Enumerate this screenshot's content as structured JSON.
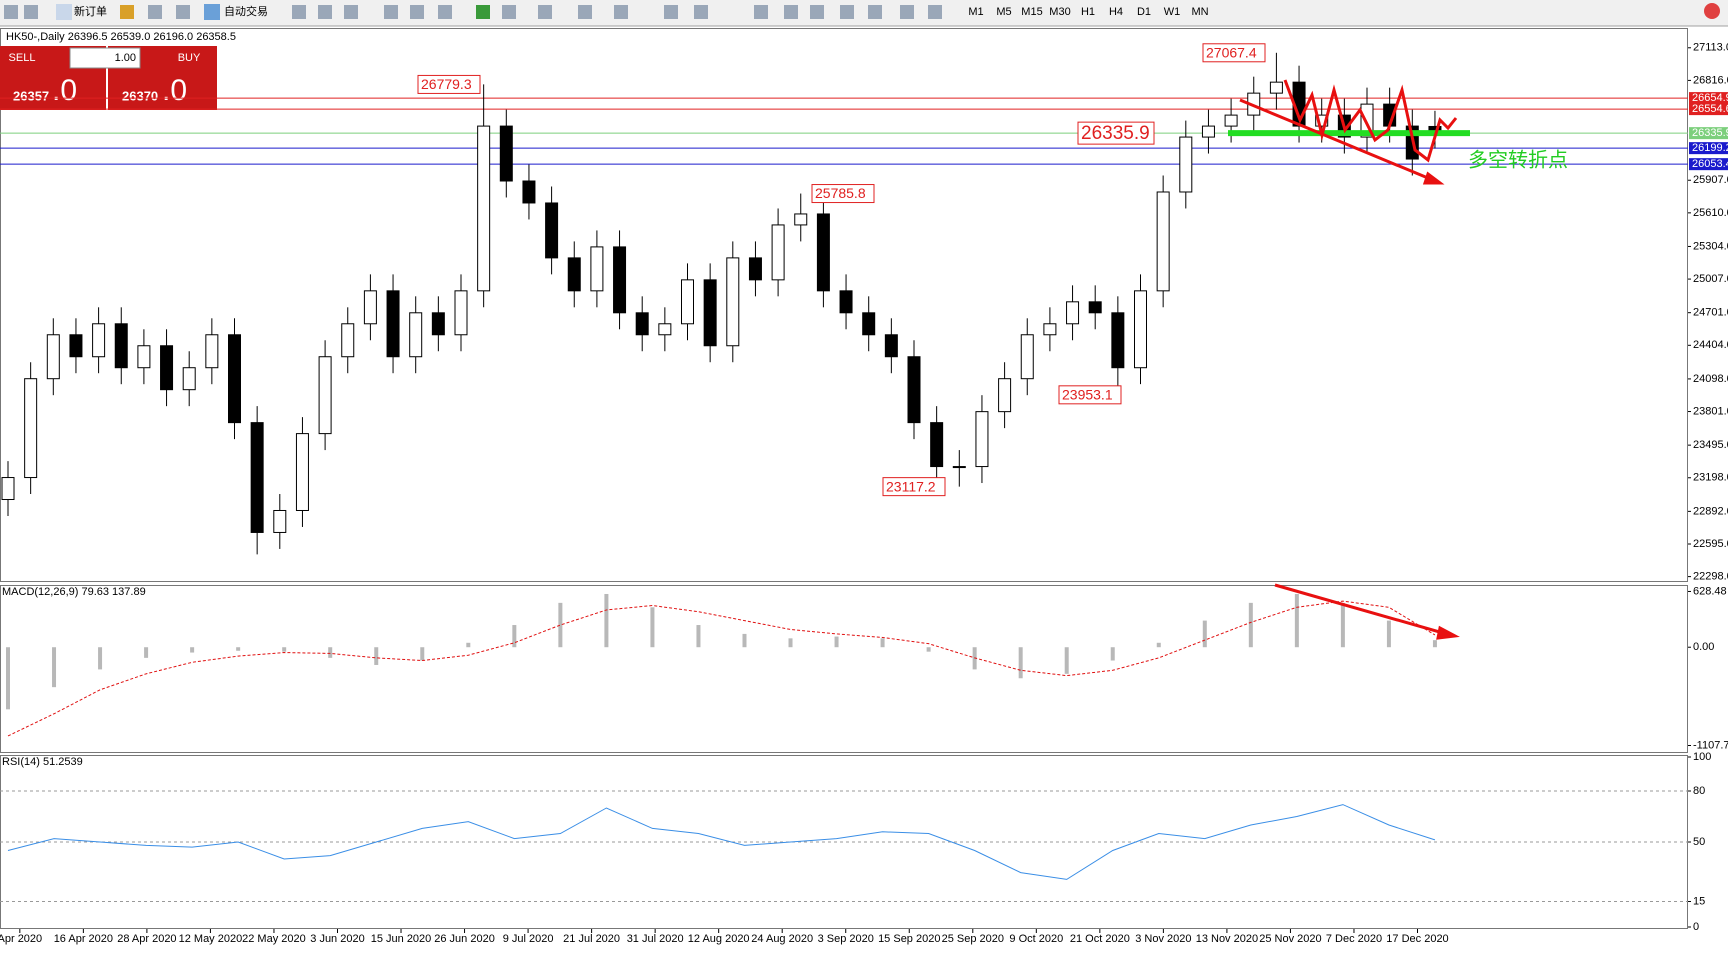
{
  "toolbar": {
    "new_order": "新订单",
    "auto_trading": "自动交易",
    "timeframes": [
      "M1",
      "M5",
      "M15",
      "M30",
      "H1",
      "H4",
      "D1",
      "W1",
      "MN"
    ]
  },
  "trade_panel": {
    "sell": "SELL",
    "buy": "BUY",
    "lot": "1.00",
    "sell_price": "26357",
    "sell_price_tail": ".0",
    "buy_price": "26370",
    "buy_price_tail": ".0"
  },
  "chart_data": [
    {
      "type": "candlestick",
      "title": "HK50-,Daily  26396.5 26539.0 26196.0 26358.5",
      "up_color": "#ffffff",
      "down_color": "#000000",
      "open": [
        23000,
        23200,
        24100,
        24500,
        24300,
        24600,
        24200,
        24400,
        24000,
        24200,
        24500,
        23700,
        22700,
        22900,
        23600,
        24300,
        24600,
        24900,
        24300,
        24700,
        24500,
        24900,
        26400,
        25900,
        25700,
        25200,
        24900,
        25300,
        24700,
        24500,
        24600,
        25000,
        24400,
        25200,
        25000,
        25500,
        25600,
        24900,
        24700,
        24500,
        24300,
        23700,
        23300,
        23300,
        23800,
        24100,
        24500,
        24600,
        24800,
        24700,
        24200,
        24900,
        25800,
        26300,
        26400,
        26500,
        26700,
        26800,
        26400,
        26500,
        26300,
        26600,
        26400,
        26396.5
      ],
      "high": [
        23350,
        24250,
        24650,
        24650,
        24750,
        24750,
        24550,
        24550,
        24350,
        24650,
        24650,
        23850,
        23050,
        23750,
        24450,
        24750,
        25050,
        25050,
        24850,
        24850,
        25050,
        26779.3,
        26550,
        26050,
        25850,
        25350,
        25450,
        25450,
        24850,
        24750,
        25150,
        25150,
        25350,
        25350,
        25650,
        25785.8,
        25750,
        25050,
        24850,
        24650,
        24450,
        23850,
        23450,
        23950,
        24250,
        24650,
        24750,
        24950,
        24950,
        24850,
        25050,
        25950,
        26450,
        26550,
        26650,
        26850,
        27067.4,
        26950,
        26650,
        26650,
        26750,
        26750,
        26550,
        26539
      ],
      "low": [
        22850,
        23050,
        23950,
        24150,
        24150,
        24050,
        24050,
        23850,
        23850,
        24050,
        23550,
        22500,
        22550,
        22750,
        23450,
        24150,
        24450,
        24150,
        24150,
        24350,
        24350,
        24750,
        25750,
        25550,
        25050,
        24750,
        24750,
        24550,
        24350,
        24350,
        24450,
        24250,
        24250,
        24850,
        24850,
        25350,
        24750,
        24550,
        24350,
        24150,
        23550,
        23150,
        23117.2,
        23150,
        23650,
        23950,
        24350,
        24450,
        24550,
        23953.1,
        24050,
        24750,
        25650,
        26150,
        26250,
        26350,
        26550,
        26250,
        26250,
        26150,
        26150,
        26250,
        25950,
        26196
      ],
      "close": [
        23200,
        24100,
        24500,
        24300,
        24600,
        24200,
        24400,
        24000,
        24200,
        24500,
        23700,
        22700,
        22900,
        23600,
        24300,
        24600,
        24900,
        24300,
        24700,
        24500,
        24900,
        26400,
        25900,
        25700,
        25200,
        24900,
        25300,
        24700,
        24500,
        24600,
        25000,
        24400,
        25200,
        25000,
        25500,
        25600,
        24900,
        24700,
        24500,
        24300,
        23700,
        23300,
        23300,
        23800,
        24100,
        24500,
        24600,
        24800,
        24700,
        24200,
        24900,
        25800,
        26300,
        26400,
        26500,
        26700,
        26800,
        26400,
        26500,
        26300,
        26600,
        26400,
        26100,
        26358.5
      ],
      "ylim": [
        22258,
        27284
      ],
      "yticks": [
        {
          "value": 27113,
          "label": "27113.0"
        },
        {
          "value": 26816,
          "label": "26816.0"
        },
        {
          "value": 25907,
          "label": "25907.0"
        },
        {
          "value": 25610,
          "label": "25610.0"
        },
        {
          "value": 25304,
          "label": "25304.0"
        },
        {
          "value": 25007,
          "label": "25007.0"
        },
        {
          "value": 24701,
          "label": "24701.0"
        },
        {
          "value": 24404,
          "label": "24404.0"
        },
        {
          "value": 24098,
          "label": "24098.0"
        },
        {
          "value": 23801,
          "label": "23801.0"
        },
        {
          "value": 23495,
          "label": "23495.0"
        },
        {
          "value": 23198,
          "label": "23198.0"
        },
        {
          "value": 22892,
          "label": "22892.0"
        },
        {
          "value": 22595,
          "label": "22595.0"
        },
        {
          "value": 22298,
          "label": "22298.0"
        }
      ],
      "hlines": [
        {
          "value": 26654.9,
          "color": "#e02020"
        },
        {
          "value": 26554.6,
          "color": "#e02020"
        },
        {
          "value": 26335.9,
          "color": "#7ccf7c"
        },
        {
          "value": 26199.2,
          "color": "#1a1acc"
        },
        {
          "value": 26053.4,
          "color": "#1a1acc"
        }
      ],
      "annotations": [
        27067.4,
        26779.3,
        26335.9,
        25785.8,
        23953.1,
        23117.2
      ],
      "note": "多空转折点",
      "x_labels": [
        "Apr 2020",
        "16 Apr 2020",
        "28 Apr 2020",
        "12 May 2020",
        "22 May 2020",
        "3 Jun 2020",
        "15 Jun 2020",
        "26 Jun 2020",
        "9 Jul 2020",
        "21 Jul 2020",
        "31 Jul 2020",
        "12 Aug 2020",
        "24 Aug 2020",
        "3 Sep 2020",
        "15 Sep 2020",
        "25 Sep 2020",
        "9 Oct 2020",
        "21 Oct 2020",
        "3 Nov 2020",
        "13 Nov 2020",
        "25 Nov 2020",
        "7 Dec 2020",
        "17 Dec 2020"
      ]
    },
    {
      "type": "macd",
      "title": "MACD(12,26,9) 79.63 137.89",
      "histogram": [
        -700,
        -450,
        -250,
        -120,
        -60,
        -40,
        -50,
        -120,
        -200,
        -150,
        50,
        250,
        500,
        600,
        450,
        250,
        150,
        100,
        120,
        100,
        -50,
        -250,
        -350,
        -300,
        -150,
        50,
        300,
        500,
        600,
        500,
        300,
        79.63
      ],
      "signal": [
        -1000,
        -750,
        -480,
        -300,
        -170,
        -100,
        -60,
        -70,
        -120,
        -150,
        -90,
        50,
        250,
        420,
        470,
        400,
        300,
        200,
        150,
        110,
        40,
        -120,
        -260,
        -320,
        -260,
        -120,
        80,
        280,
        450,
        520,
        450,
        137.89
      ],
      "ylim": [
        -1181,
        690
      ],
      "yticks": [
        {
          "value": 628.48,
          "label": "628.48"
        },
        {
          "value": 0,
          "label": "0.00"
        },
        {
          "value": -1107.73,
          "label": "-1107.73"
        }
      ]
    },
    {
      "type": "rsi",
      "title": "RSI(14) 51.2539",
      "color": "#3a8ee6",
      "values": [
        45,
        52,
        50,
        48,
        47,
        50,
        40,
        42,
        50,
        58,
        62,
        52,
        55,
        70,
        58,
        55,
        48,
        50,
        52,
        56,
        55,
        45,
        32,
        28,
        45,
        55,
        52,
        60,
        65,
        72,
        60,
        51.2539
      ],
      "ylim": [
        0,
        100
      ],
      "yticks": [
        100,
        80,
        50,
        15,
        0
      ]
    }
  ]
}
